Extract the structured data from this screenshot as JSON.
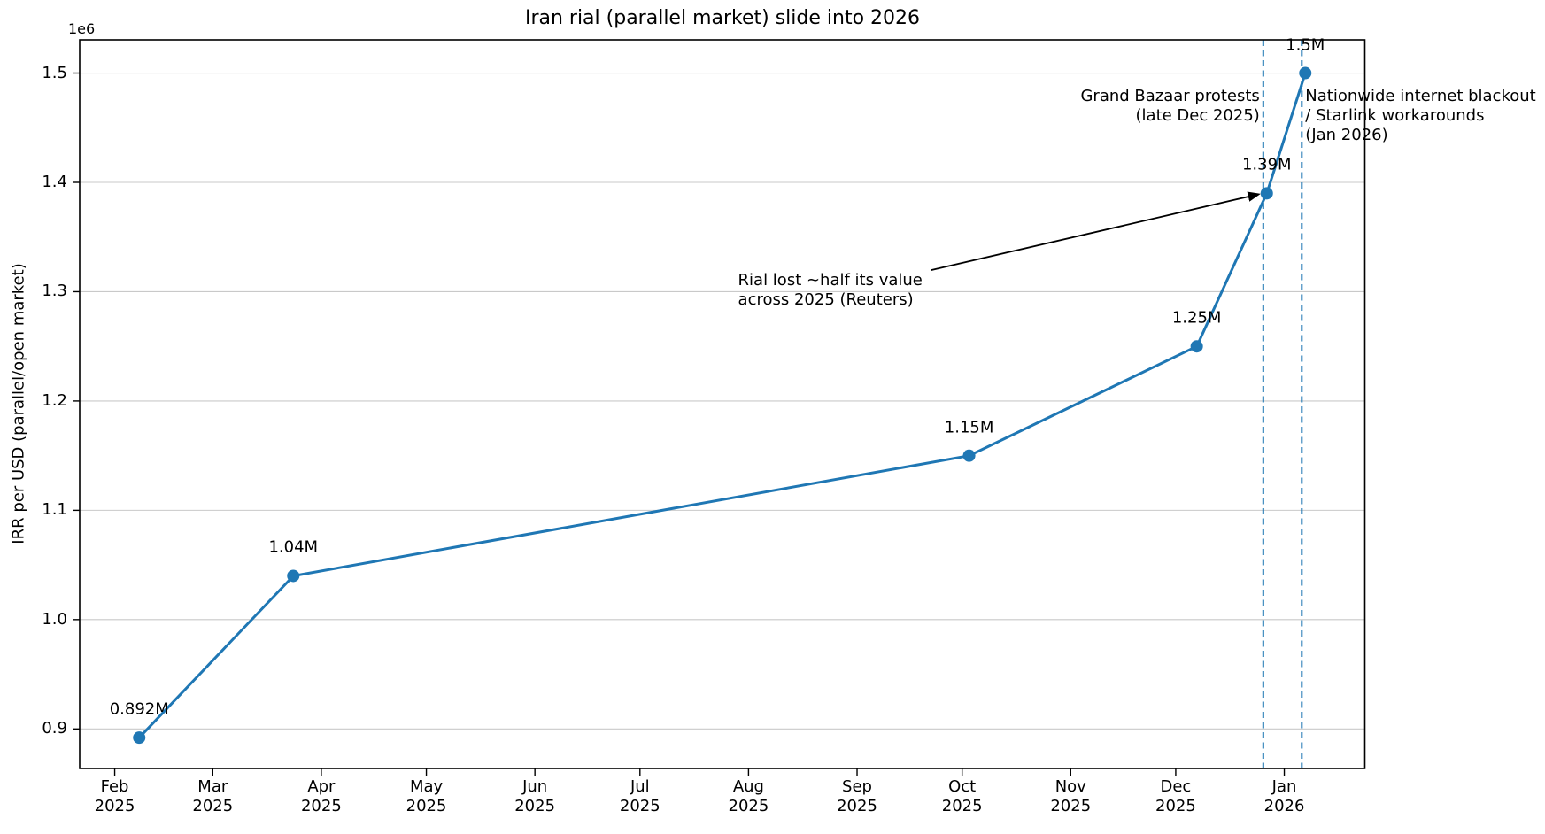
{
  "chart_data": {
    "type": "line",
    "title": "Iran rial (parallel market) slide into 2026",
    "xlabel": "",
    "ylabel": "IRR per USD (parallel/open market)",
    "y_offset_label": "1e6",
    "line_color": "#1f77b4",
    "event_line_color": "#1f77b4",
    "grid": "horizontal",
    "legend": "none",
    "xlim": [
      "2025-01-22",
      "2026-01-24"
    ],
    "ylim": [
      863800,
      1530400
    ],
    "series": [
      {
        "name": "IRR per USD (parallel/open market)",
        "points": [
          {
            "date": "2025-02-08",
            "value": 892000,
            "label": "0.892M"
          },
          {
            "date": "2025-03-24",
            "value": 1040000,
            "label": "1.04M"
          },
          {
            "date": "2025-10-03",
            "value": 1150000,
            "label": "1.15M"
          },
          {
            "date": "2025-12-07",
            "value": 1250000,
            "label": "1.25M"
          },
          {
            "date": "2025-12-27",
            "value": 1390000,
            "label": "1.39M"
          },
          {
            "date": "2026-01-07",
            "value": 1500000,
            "label": "1.5M"
          }
        ]
      }
    ],
    "x_ticks": [
      {
        "date": "2025-02-01",
        "lines": [
          "Feb",
          "2025"
        ]
      },
      {
        "date": "2025-03-01",
        "lines": [
          "Mar",
          "2025"
        ]
      },
      {
        "date": "2025-04-01",
        "lines": [
          "Apr",
          "2025"
        ]
      },
      {
        "date": "2025-05-01",
        "lines": [
          "May",
          "2025"
        ]
      },
      {
        "date": "2025-06-01",
        "lines": [
          "Jun",
          "2025"
        ]
      },
      {
        "date": "2025-07-01",
        "lines": [
          "Jul",
          "2025"
        ]
      },
      {
        "date": "2025-08-01",
        "lines": [
          "Aug",
          "2025"
        ]
      },
      {
        "date": "2025-09-01",
        "lines": [
          "Sep",
          "2025"
        ]
      },
      {
        "date": "2025-10-01",
        "lines": [
          "Oct",
          "2025"
        ]
      },
      {
        "date": "2025-11-01",
        "lines": [
          "Nov",
          "2025"
        ]
      },
      {
        "date": "2025-12-01",
        "lines": [
          "Dec",
          "2025"
        ]
      },
      {
        "date": "2026-01-01",
        "lines": [
          "Jan",
          "2026"
        ]
      }
    ],
    "y_ticks": [
      {
        "value": 900000,
        "label": "0.9"
      },
      {
        "value": 1000000,
        "label": "1.0"
      },
      {
        "value": 1100000,
        "label": "1.1"
      },
      {
        "value": 1200000,
        "label": "1.2"
      },
      {
        "value": 1300000,
        "label": "1.3"
      },
      {
        "value": 1400000,
        "label": "1.4"
      },
      {
        "value": 1500000,
        "label": "1.5"
      }
    ],
    "events": [
      {
        "date": "2025-12-26",
        "lines": [
          "Grand Bazaar protests",
          "(late Dec 2025)"
        ],
        "align": "right"
      },
      {
        "date": "2026-01-06",
        "lines": [
          "Nationwide internet blackout",
          "/ Starlink workarounds",
          "(Jan 2026)"
        ],
        "align": "left"
      }
    ],
    "annotation": {
      "lines": [
        "Rial lost ~half its value",
        "across 2025 (Reuters)"
      ],
      "text_date": "2025-07-29",
      "text_value": 1310000,
      "target_date": "2025-12-27",
      "target_value": 1390000
    }
  }
}
